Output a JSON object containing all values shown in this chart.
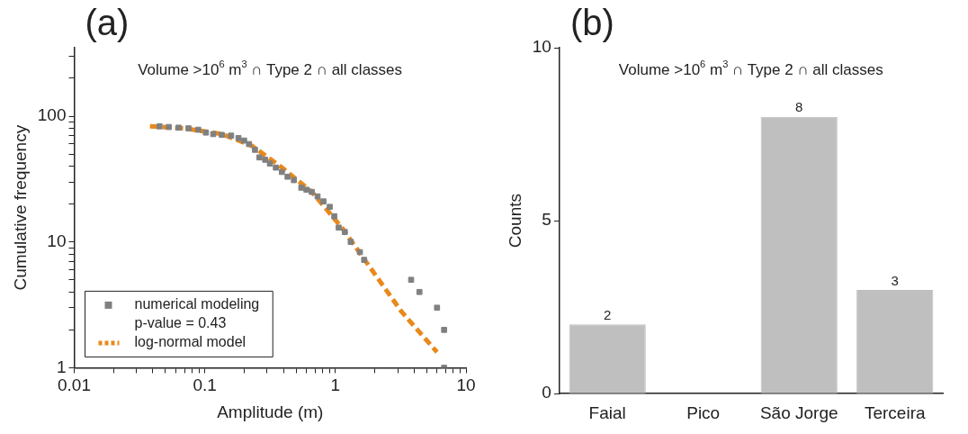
{
  "chart_data": [
    {
      "type": "scatter",
      "title": "(a)",
      "subtitle": "Volume >10$^{6}$ m$^{3}$ ∩ Type 2 ∩ all classes",
      "xlabel": "Amplitude (m)",
      "ylabel": "Cumulative frequency",
      "log": "xy",
      "xlim": [
        0.01,
        10
      ],
      "ylim": [
        1,
        350
      ],
      "xticks": [
        0.01,
        {
          "value": 0.02,
          "label": null
        },
        {
          "value": 0.03,
          "label": null
        },
        {
          "value": 0.04,
          "label": null
        },
        {
          "value": 0.05,
          "label": null
        },
        {
          "value": 0.06,
          "label": null
        },
        {
          "value": 0.07,
          "label": null
        },
        {
          "value": 0.08,
          "label": null
        },
        {
          "value": 0.09,
          "label": null
        },
        0.1,
        {
          "value": 0.2,
          "label": null
        },
        {
          "value": 0.3,
          "label": null
        },
        {
          "value": 0.4,
          "label": null
        },
        {
          "value": 0.5,
          "label": null
        },
        {
          "value": 0.6,
          "label": null
        },
        {
          "value": 0.7,
          "label": null
        },
        {
          "value": 0.8,
          "label": null
        },
        {
          "value": 0.9,
          "label": null
        },
        1,
        {
          "value": 2,
          "label": null
        },
        {
          "value": 3,
          "label": null
        },
        {
          "value": 4,
          "label": null
        },
        {
          "value": 5,
          "label": null
        },
        {
          "value": 6,
          "label": null
        },
        {
          "value": 7,
          "label": null
        },
        {
          "value": 8,
          "label": null
        },
        {
          "value": 9,
          "label": null
        },
        10
      ],
      "yticks": [
        1,
        {
          "value": 2,
          "label": null
        },
        {
          "value": 3,
          "label": null
        },
        {
          "value": 4,
          "label": null
        },
        {
          "value": 5,
          "label": null
        },
        {
          "value": 6,
          "label": null
        },
        {
          "value": 7,
          "label": null
        },
        {
          "value": 8,
          "label": null
        },
        {
          "value": 9,
          "label": null
        },
        10,
        {
          "value": 20,
          "label": null
        },
        {
          "value": 30,
          "label": null
        },
        {
          "value": 40,
          "label": null
        },
        {
          "value": 50,
          "label": null
        },
        {
          "value": 60,
          "label": null
        },
        {
          "value": 70,
          "label": null
        },
        {
          "value": 80,
          "label": null
        },
        {
          "value": 90,
          "label": null
        },
        100,
        {
          "value": 200,
          "label": null
        },
        {
          "value": 300,
          "label": null
        }
      ],
      "legend": "bottom left",
      "marker": "square",
      "annotations": [
        "p-value = 0.43"
      ],
      "series": [
        {
          "name": "numerical modeling",
          "type": "scatter",
          "color": "#808080",
          "x": [
            0.045,
            0.053,
            0.063,
            0.075,
            0.089,
            0.102,
            0.116,
            0.135,
            0.159,
            0.181,
            0.2,
            0.218,
            0.242,
            0.262,
            0.29,
            0.315,
            0.35,
            0.389,
            0.43,
            0.481,
            0.548,
            0.6,
            0.659,
            0.73,
            0.81,
            0.905,
            0.98,
            1.06,
            1.18,
            1.31,
            1.54,
            1.66,
            3.8,
            4.4,
            6.0,
            6.8,
            6.8
          ],
          "values": [
            83,
            82,
            81,
            80,
            78,
            74,
            72,
            71,
            70,
            67,
            64,
            60,
            54,
            47,
            45,
            42,
            39,
            36,
            33,
            31,
            27,
            26,
            25,
            23,
            21,
            19,
            16,
            13,
            12,
            10,
            8.3,
            7.2,
            5,
            4,
            3,
            2,
            1
          ]
        },
        {
          "name": "log-normal model",
          "type": "line",
          "color": "#e8891c",
          "line_style": "dashed",
          "marker": "none",
          "x": [
            0.038,
            0.07,
            0.136,
            0.23,
            0.39,
            0.66,
            1.12,
            1.9,
            3.2,
            6.0
          ],
          "values": [
            83,
            80,
            72,
            58,
            39,
            25,
            13,
            6,
            2.8,
            1.33
          ]
        }
      ]
    },
    {
      "type": "bar",
      "title": "(b)",
      "subtitle": "Volume >10$^{6}$ m$^{3}$ ∩ Type 2 ∩ all classes",
      "ylabel": "Counts",
      "categories": [
        "Faial",
        "Pico",
        "São Jorge",
        "Terceira"
      ],
      "values": [
        2,
        0,
        8,
        3
      ],
      "color": "#bfbfbf",
      "ylim": [
        0,
        10
      ],
      "yticks": [
        0,
        5,
        10
      ],
      "value_labels": [
        "2",
        null,
        "8",
        "3"
      ],
      "legend": false
    }
  ]
}
